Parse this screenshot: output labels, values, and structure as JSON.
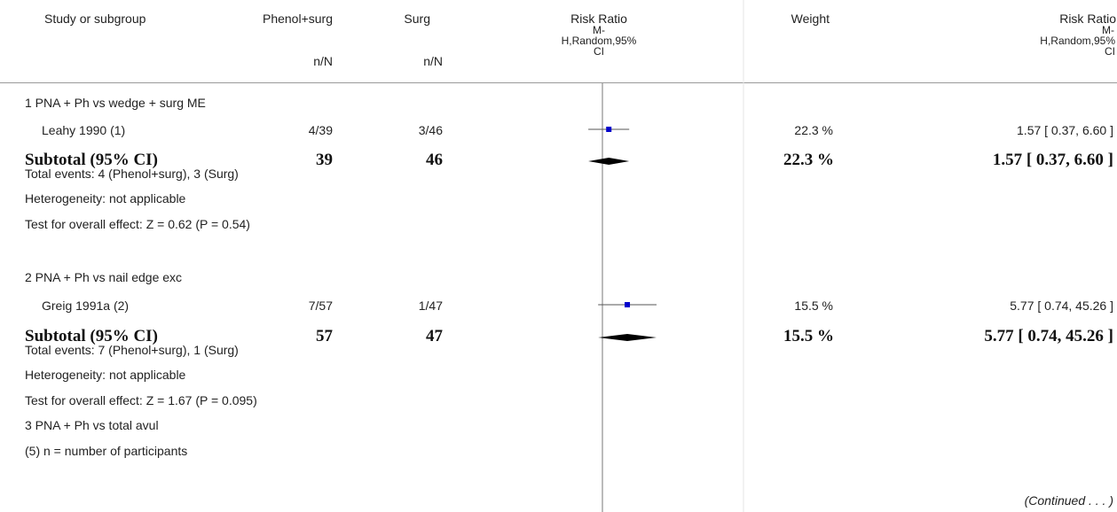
{
  "header": {
    "study": "Study or subgroup",
    "group1": "Phenol+surg",
    "group2": "Surg",
    "nN1": "n/N",
    "nN2": "n/N",
    "rr_title": "Risk Ratio",
    "rr_m": "M-",
    "rr_method": "H,Random,95%",
    "rr_ci": "CI",
    "weight": "Weight",
    "rr2_title": "Risk Ratio",
    "rr2_m": "M-",
    "rr2_method": "H,Random,95%",
    "rr2_ci": "CI"
  },
  "rows": {
    "g1_label": "1 PNA + Ph vs wedge + surg ME",
    "s1_name": "Leahy 1990 (1)",
    "s1_n1": "4/39",
    "s1_n2": "3/46",
    "s1_weight": "22.3 %",
    "s1_rr": "1.57 [ 0.37, 6.60 ]",
    "sub1_label": "Subtotal (95% CI)",
    "sub1_n1": "39",
    "sub1_n2": "46",
    "sub1_weight": "22.3 %",
    "sub1_rr": "1.57 [ 0.37, 6.60 ]",
    "g1_events": "Total events: 4 (Phenol+surg), 3 (Surg)",
    "g1_het": "Heterogeneity: not applicable",
    "g1_test": "Test for overall effect: Z = 0.62 (P = 0.54)",
    "g2_label": "2 PNA + Ph vs nail edge exc",
    "s2_name": "Greig 1991a (2)",
    "s2_n1": "7/57",
    "s2_n2": "1/47",
    "s2_weight": "15.5 %",
    "s2_rr": "5.77 [ 0.74, 45.26 ]",
    "sub2_label": "Subtotal (95% CI)",
    "sub2_n1": "57",
    "sub2_n2": "47",
    "sub2_weight": "15.5 %",
    "sub2_rr": "5.77 [ 0.74, 45.26 ]",
    "g2_events": "Total events: 7 (Phenol+surg), 1 (Surg)",
    "g2_het": "Heterogeneity: not applicable",
    "g2_test": "Test for overall effect: Z = 1.67 (P = 0.095)",
    "g3_label": "3 PNA + Ph vs total avul",
    "footnote": "(5) n = number of participants",
    "continued": "(Continued . . . )"
  },
  "chart_data": {
    "type": "forest",
    "scale": "log",
    "null_value": 1,
    "studies": [
      {
        "name": "Leahy 1990 (1)",
        "rr": 1.57,
        "lower": 0.37,
        "upper": 6.6,
        "weight": 22.3
      },
      {
        "name": "Greig 1991a (2)",
        "rr": 5.77,
        "lower": 0.74,
        "upper": 45.26,
        "weight": 15.5
      }
    ],
    "subtotals": [
      {
        "name": "Subtotal (95% CI)",
        "rr": 1.57,
        "lower": 0.37,
        "upper": 6.6
      },
      {
        "name": "Subtotal (95% CI)",
        "rr": 5.77,
        "lower": 0.74,
        "upper": 45.26
      }
    ],
    "colors": {
      "marker": "#0000cc",
      "diamond": "#000000",
      "line": "#555555"
    }
  }
}
